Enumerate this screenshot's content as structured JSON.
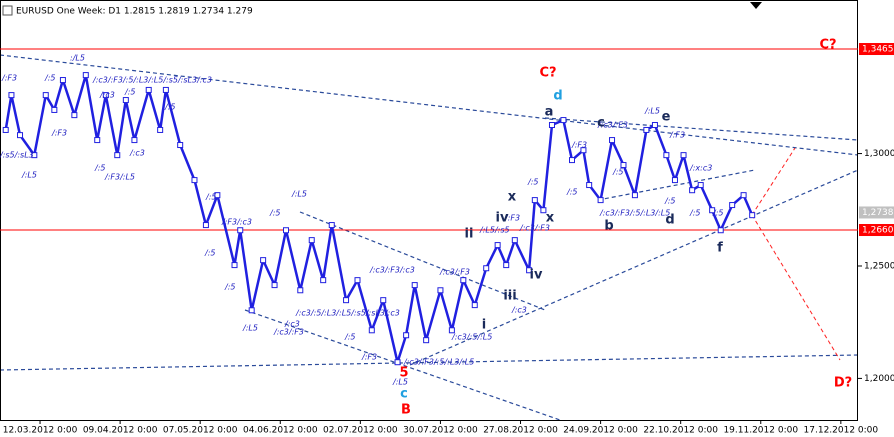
{
  "chart_data": {
    "type": "line",
    "title": "EURUSD One Week: D1  1.2815 1.2819 1.2734 1.279",
    "xlim": [
      "27.02.2012",
      "23.12.2012"
    ],
    "xticks": [
      {
        "value": "12.03.2012",
        "label": "12.03.2012 0:00"
      },
      {
        "value": "09.04.2012",
        "label": "09.04.2012 0:00"
      },
      {
        "value": "07.05.2012",
        "label": "07.05.2012 0:00"
      },
      {
        "value": "04.06.2012",
        "label": "04.06.2012 0:00"
      },
      {
        "value": "02.07.2012",
        "label": "02.07.2012 0:00"
      },
      {
        "value": "30.07.2012",
        "label": "30.07.2012 0:00"
      },
      {
        "value": "27.08.2012",
        "label": "27.08.2012 0:00"
      },
      {
        "value": "24.09.2012",
        "label": "24.09.2012 0:00"
      },
      {
        "value": "22.10.2012",
        "label": "22.10.2012 0:00"
      },
      {
        "value": "19.11.2012",
        "label": "19.11.2012 0:00"
      },
      {
        "value": "17.12.2012",
        "label": "17.12.2012 0:00"
      }
    ],
    "ylim": [
      1.1815,
      1.3683
    ],
    "yticks": [
      {
        "value": 1.2,
        "label": "1,2000"
      },
      {
        "value": 1.25,
        "label": "1,2500"
      },
      {
        "value": 1.3,
        "label": "1,3000"
      }
    ],
    "grid": false,
    "price_lines": [
      {
        "value": 1.3465,
        "label": "1,3465",
        "color": "#ff0000"
      },
      {
        "value": 1.266,
        "label": "1,2660",
        "color": "#ff0000"
      }
    ],
    "current_price": {
      "value": 1.2738,
      "label": "1,2738",
      "color": "#c0c0c0"
    },
    "series": [
      {
        "color": "#2020e0",
        "x": [
          "29.02.2012",
          "02.03.2012",
          "05.03.2012",
          "10.03.2012",
          "14.03.2012",
          "17.03.2012",
          "20.03.2012",
          "24.03.2012",
          "28.03.2012",
          "01.04.2012",
          "04.04.2012",
          "08.04.2012",
          "11.04.2012",
          "14.04.2012",
          "19.04.2012",
          "23.04.2012",
          "25.04.2012",
          "30.04.2012",
          "05.05.2012",
          "09.05.2012",
          "13.05.2012",
          "19.05.2012",
          "21.05.2012",
          "25.05.2012",
          "29.05.2012",
          "02.06.2012",
          "06.06.2012",
          "11.06.2012",
          "15.06.2012",
          "19.06.2012",
          "22.06.2012",
          "27.06.2012",
          "01.07.2012",
          "06.07.2012",
          "10.07.2012",
          "15.07.2012",
          "18.07.2012",
          "21.07.2012",
          "25.07.2012",
          "30.07.2012",
          "03.08.2012",
          "07.08.2012",
          "11.08.2012",
          "15.08.2012",
          "19.08.2012",
          "22.08.2012",
          "25.08.2012",
          "30.08.2012",
          "01.09.2012",
          "04.09.2012",
          "07.09.2012",
          "11.09.2012",
          "14.09.2012",
          "18.09.2012",
          "20.09.2012",
          "24.09.2012",
          "28.09.2012",
          "02.10.2012",
          "06.10.2012",
          "10.10.2012",
          "13.10.2012",
          "17.10.2012",
          "20.10.2012",
          "23.10.2012",
          "26.10.2012",
          "29.10.2012",
          "02.11.2012",
          "05.11.2012",
          "09.11.2012",
          "13.11.2012",
          "16.11.2012"
        ],
        "values": [
          1.3105,
          1.326,
          1.3082,
          1.2993,
          1.326,
          1.3194,
          1.3327,
          1.3171,
          1.3349,
          1.306,
          1.326,
          1.2993,
          1.3238,
          1.306,
          1.3283,
          1.3105,
          1.3283,
          1.3038,
          1.2882,
          1.2682,
          1.2815,
          1.2504,
          1.2659,
          1.2303,
          1.2526,
          1.2415,
          1.2659,
          1.2392,
          1.2615,
          1.2437,
          1.2682,
          1.2348,
          1.2437,
          1.2214,
          1.2348,
          1.2072,
          1.2192,
          1.2415,
          1.217,
          1.2392,
          1.2214,
          1.2437,
          1.2326,
          1.249,
          1.2593,
          1.2504,
          1.2615,
          1.2481,
          1.2793,
          1.2748,
          1.3127,
          1.3149,
          1.2971,
          1.3015,
          1.286,
          1.2793,
          1.306,
          1.2949,
          1.2815,
          1.3105,
          1.3127,
          1.2993,
          1.2882,
          1.2993,
          1.2837,
          1.286,
          1.2748,
          1.2659,
          1.2771,
          1.2815,
          1.2726
        ]
      }
    ],
    "annotations": [
      ":/L5",
      "/:F3",
      "/:5",
      "/:c3/:F3/:5/:L3/:L5/:s5/:sL3/:c3",
      "/:c3",
      "/:5",
      "/:F3",
      "/:s5/:sL3",
      "/:L5",
      "/:5",
      "/:F3/:L5",
      "/:c3",
      "/:5",
      "/:L5",
      "/:F3/:c3",
      "/:5",
      "/:5",
      "/:5",
      "/:L5",
      "/:c3",
      "/:c3/:F3",
      "/:c3/:5/:L3/:L5/:s5/:sL3/:c3",
      "/:c3/:F3/:c3",
      "/:c3/:F3",
      "/:5",
      "/:F3",
      "/:L5",
      "/:c3/:F3/:5/:L3/:L5",
      "/:c3/:5/:L5",
      "/:c3",
      "/:L5/:s5",
      "/:c3/:F3",
      "/:5",
      "/:5",
      "/:F3",
      "/:c3/:F3",
      "/:L5",
      "/:F3",
      "/:c3/:F3/:5/:L3/:L5",
      "/:5",
      "/:5",
      "/:x:c3",
      "/:5",
      "/:5",
      "/:F3",
      "/:5"
    ],
    "wave_labels": [
      {
        "text": "C?",
        "color": "#ff0000"
      },
      {
        "text": "a",
        "color": "#1a2a5a"
      },
      {
        "text": "d",
        "color": "#20a0e0"
      },
      {
        "text": "c",
        "color": "#1a2a5a"
      },
      {
        "text": "e",
        "color": "#1a2a5a"
      },
      {
        "text": "b",
        "color": "#1a2a5a"
      },
      {
        "text": "d",
        "color": "#1a2a5a"
      },
      {
        "text": "f",
        "color": "#1a2a5a"
      },
      {
        "text": "x",
        "color": "#1a2a5a"
      },
      {
        "text": "x",
        "color": "#1a2a5a"
      },
      {
        "text": "iv",
        "color": "#1a2a5a"
      },
      {
        "text": "ii",
        "color": "#1a2a5a"
      },
      {
        "text": "iii",
        "color": "#1a2a5a"
      },
      {
        "text": "iv",
        "color": "#1a2a5a"
      },
      {
        "text": "i",
        "color": "#1a2a5a"
      },
      {
        "text": "5",
        "color": "#ff0000"
      },
      {
        "text": "c",
        "color": "#20a0e0"
      },
      {
        "text": "B",
        "color": "#ff0000"
      },
      {
        "text": "C?",
        "color": "#ff0000"
      },
      {
        "text": "D?",
        "color": "#ff0000"
      }
    ]
  }
}
